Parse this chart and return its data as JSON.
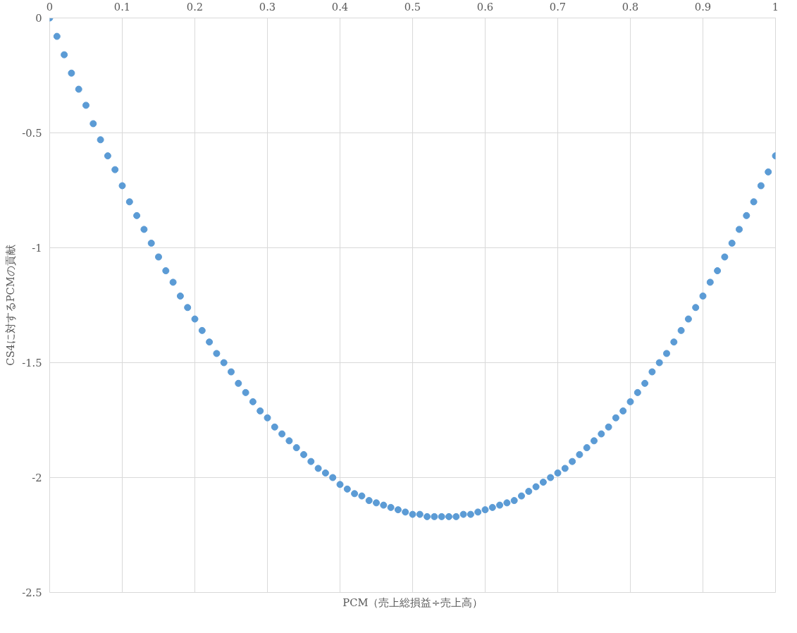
{
  "chart_data": {
    "type": "scatter",
    "xlabel": "PCM（売上総損益÷売上高）",
    "ylabel": "CS4に対するPCMの貢献",
    "x": [
      0,
      0.01,
      0.02,
      0.03,
      0.04,
      0.05,
      0.06,
      0.07,
      0.08,
      0.09,
      0.1,
      0.11,
      0.12,
      0.13,
      0.14,
      0.15,
      0.16,
      0.17,
      0.18,
      0.19,
      0.2,
      0.21,
      0.22,
      0.23,
      0.24,
      0.25,
      0.26,
      0.27,
      0.28,
      0.29,
      0.3,
      0.31,
      0.32,
      0.33,
      0.34,
      0.35,
      0.36,
      0.37,
      0.38,
      0.39,
      0.4,
      0.41,
      0.42,
      0.43,
      0.44,
      0.45,
      0.46,
      0.47,
      0.48,
      0.49,
      0.5,
      0.51,
      0.52,
      0.53,
      0.54,
      0.55,
      0.56,
      0.57,
      0.58,
      0.59,
      0.6,
      0.61,
      0.62,
      0.63,
      0.64,
      0.65,
      0.66,
      0.67,
      0.68,
      0.69,
      0.7,
      0.71,
      0.72,
      0.73,
      0.74,
      0.75,
      0.76,
      0.77,
      0.78,
      0.79,
      0.8,
      0.81,
      0.82,
      0.83,
      0.84,
      0.85,
      0.86,
      0.87,
      0.88,
      0.89,
      0.9,
      0.91,
      0.92,
      0.93,
      0.94,
      0.95,
      0.96,
      0.97,
      0.98,
      0.99,
      1
    ],
    "series": [
      {
        "color": "#5b9bd5",
        "values": [
          0,
          -0.08,
          -0.16,
          -0.24,
          -0.31,
          -0.38,
          -0.46,
          -0.53,
          -0.6,
          -0.66,
          -0.73,
          -0.8,
          -0.86,
          -0.92,
          -0.98,
          -1.04,
          -1.1,
          -1.15,
          -1.21,
          -1.26,
          -1.31,
          -1.36,
          -1.41,
          -1.46,
          -1.5,
          -1.54,
          -1.59,
          -1.63,
          -1.67,
          -1.71,
          -1.74,
          -1.78,
          -1.81,
          -1.84,
          -1.87,
          -1.9,
          -1.93,
          -1.96,
          -1.98,
          -2.0,
          -2.03,
          -2.05,
          -2.07,
          -2.08,
          -2.1,
          -2.11,
          -2.12,
          -2.13,
          -2.14,
          -2.15,
          -2.16,
          -2.16,
          -2.17,
          -2.17,
          -2.17,
          -2.17,
          -2.17,
          -2.16,
          -2.16,
          -2.15,
          -2.14,
          -2.13,
          -2.12,
          -2.11,
          -2.1,
          -2.08,
          -2.06,
          -2.04,
          -2.02,
          -2.0,
          -1.98,
          -1.96,
          -1.93,
          -1.9,
          -1.87,
          -1.84,
          -1.81,
          -1.78,
          -1.74,
          -1.71,
          -1.67,
          -1.63,
          -1.59,
          -1.54,
          -1.5,
          -1.46,
          -1.41,
          -1.36,
          -1.31,
          -1.26,
          -1.21,
          -1.15,
          -1.1,
          -1.04,
          -0.98,
          -0.92,
          -0.86,
          -0.8,
          -0.73,
          -0.67,
          -0.6
        ]
      }
    ],
    "xlim": [
      0,
      1
    ],
    "ylim": [
      -2.5,
      0
    ],
    "xticks": [
      0,
      0.1,
      0.2,
      0.3,
      0.4,
      0.5,
      0.6,
      0.7,
      0.8,
      0.9,
      1
    ],
    "yticks": [
      {
        "value": -2.5,
        "label": "-2.5"
      },
      {
        "value": -2,
        "label": "-2"
      },
      {
        "value": -1.5,
        "label": "-1.5"
      },
      {
        "value": -1,
        "label": "-1"
      },
      {
        "value": -0.5,
        "label": "-0.5"
      },
      {
        "value": 0,
        "label": "0"
      }
    ],
    "grid": true,
    "marker": "circle"
  }
}
